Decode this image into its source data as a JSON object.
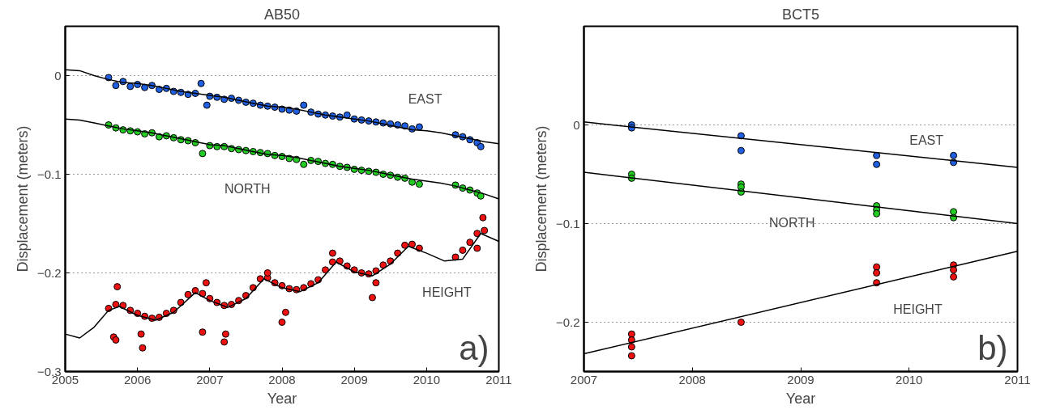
{
  "chart_data": [
    {
      "type": "scatter",
      "title": "AB50",
      "xlabel": "Year",
      "ylabel": "Displacement (meters)",
      "xlim": [
        2005,
        2011
      ],
      "ylim": [
        -0.3,
        0.05
      ],
      "xticks": [
        2005,
        2006,
        2007,
        2008,
        2009,
        2010,
        2011
      ],
      "yticks": [
        {
          "value": -0.3,
          "label": "−0.3"
        },
        {
          "value": -0.2,
          "label": "−0.2"
        },
        {
          "value": -0.1,
          "label": "−0.1"
        },
        0
      ],
      "grid": "y",
      "series": [
        {
          "marker": "circle",
          "color": "#1f5fe0",
          "x": [
            2005.6,
            2005.7,
            2005.8,
            2005.9,
            2006.0,
            2006.1,
            2006.2,
            2006.3,
            2006.4,
            2006.5,
            2006.6,
            2006.7,
            2006.8,
            2006.88,
            2006.96,
            2007.0,
            2007.1,
            2007.2,
            2007.3,
            2007.4,
            2007.5,
            2007.6,
            2007.7,
            2007.8,
            2007.9,
            2008.0,
            2008.1,
            2008.2,
            2008.3,
            2008.4,
            2008.5,
            2008.6,
            2008.7,
            2008.8,
            2008.9,
            2009.0,
            2009.1,
            2009.2,
            2009.3,
            2009.4,
            2009.5,
            2009.6,
            2009.7,
            2009.8,
            2009.9,
            2010.4,
            2010.5,
            2010.6,
            2010.7,
            2010.75
          ],
          "values": [
            -0.002,
            -0.01,
            -0.006,
            -0.011,
            -0.009,
            -0.012,
            -0.01,
            -0.014,
            -0.013,
            -0.016,
            -0.017,
            -0.019,
            -0.018,
            -0.008,
            -0.03,
            -0.021,
            -0.022,
            -0.024,
            -0.023,
            -0.025,
            -0.027,
            -0.028,
            -0.03,
            -0.031,
            -0.032,
            -0.034,
            -0.035,
            -0.036,
            -0.03,
            -0.037,
            -0.039,
            -0.04,
            -0.041,
            -0.042,
            -0.04,
            -0.044,
            -0.045,
            -0.046,
            -0.047,
            -0.048,
            -0.049,
            -0.05,
            -0.051,
            -0.054,
            -0.052,
            -0.06,
            -0.062,
            -0.065,
            -0.068,
            -0.072
          ]
        },
        {
          "marker": "circle",
          "color": "#22cc22",
          "x": [
            2005.6,
            2005.7,
            2005.8,
            2005.9,
            2006.0,
            2006.1,
            2006.2,
            2006.3,
            2006.4,
            2006.5,
            2006.6,
            2006.7,
            2006.8,
            2006.9,
            2007.0,
            2007.1,
            2007.2,
            2007.3,
            2007.4,
            2007.5,
            2007.6,
            2007.7,
            2007.8,
            2007.9,
            2008.0,
            2008.1,
            2008.2,
            2008.3,
            2008.4,
            2008.5,
            2008.6,
            2008.7,
            2008.8,
            2008.9,
            2009.0,
            2009.1,
            2009.2,
            2009.3,
            2009.4,
            2009.5,
            2009.6,
            2009.7,
            2009.8,
            2009.9,
            2010.4,
            2010.5,
            2010.6,
            2010.7,
            2010.75
          ],
          "values": [
            -0.05,
            -0.053,
            -0.055,
            -0.056,
            -0.057,
            -0.059,
            -0.058,
            -0.062,
            -0.061,
            -0.063,
            -0.065,
            -0.066,
            -0.068,
            -0.079,
            -0.071,
            -0.072,
            -0.072,
            -0.074,
            -0.075,
            -0.076,
            -0.077,
            -0.078,
            -0.079,
            -0.081,
            -0.082,
            -0.084,
            -0.085,
            -0.09,
            -0.086,
            -0.087,
            -0.089,
            -0.09,
            -0.092,
            -0.093,
            -0.095,
            -0.096,
            -0.097,
            -0.098,
            -0.1,
            -0.101,
            -0.103,
            -0.104,
            -0.108,
            -0.11,
            -0.111,
            -0.114,
            -0.116,
            -0.119,
            -0.122
          ]
        },
        {
          "marker": "circle",
          "color": "#ee1111",
          "x": [
            2005.6,
            2005.7,
            2005.8,
            2005.9,
            2006.0,
            2006.1,
            2006.2,
            2006.3,
            2006.4,
            2006.5,
            2006.6,
            2006.7,
            2006.8,
            2006.9,
            2007.0,
            2007.1,
            2007.2,
            2007.3,
            2007.4,
            2007.5,
            2007.6,
            2007.7,
            2007.8,
            2007.9,
            2008.0,
            2008.1,
            2008.2,
            2008.3,
            2008.4,
            2008.5,
            2008.6,
            2008.7,
            2008.8,
            2008.9,
            2009.0,
            2009.1,
            2009.2,
            2009.3,
            2009.4,
            2009.5,
            2009.6,
            2009.7,
            2009.8,
            2009.9,
            2010.4,
            2010.5,
            2010.6,
            2010.7,
            2010.8,
            2005.67,
            2005.7,
            2006.05,
            2006.07,
            2006.9,
            2007.2,
            2007.22,
            2008.0,
            2008.05,
            2007.8,
            2008.7,
            2009.3,
            2009.25,
            2005.72,
            2006.95,
            2010.7,
            2010.78
          ],
          "values": [
            -0.236,
            -0.232,
            -0.233,
            -0.238,
            -0.241,
            -0.244,
            -0.246,
            -0.245,
            -0.241,
            -0.238,
            -0.23,
            -0.222,
            -0.218,
            -0.221,
            -0.226,
            -0.23,
            -0.233,
            -0.232,
            -0.228,
            -0.223,
            -0.215,
            -0.206,
            -0.205,
            -0.21,
            -0.213,
            -0.216,
            -0.217,
            -0.215,
            -0.211,
            -0.207,
            -0.197,
            -0.189,
            -0.188,
            -0.193,
            -0.197,
            -0.2,
            -0.201,
            -0.198,
            -0.192,
            -0.188,
            -0.18,
            -0.172,
            -0.171,
            -0.175,
            -0.184,
            -0.177,
            -0.169,
            -0.16,
            -0.157,
            -0.265,
            -0.268,
            -0.262,
            -0.276,
            -0.26,
            -0.27,
            -0.262,
            -0.25,
            -0.24,
            -0.2,
            -0.18,
            -0.21,
            -0.225,
            -0.214,
            -0.21,
            -0.175,
            -0.144
          ]
        },
        {
          "type": "line",
          "color": "#000000",
          "x": [
            2005.0,
            2005.2,
            2005.4,
            2005.6,
            2005.8,
            2006.0,
            2006.2,
            2006.4,
            2006.6,
            2006.8,
            2007.0,
            2007.2,
            2007.4,
            2007.6,
            2007.8,
            2008.0,
            2008.2,
            2008.4,
            2008.6,
            2008.8,
            2009.0,
            2009.2,
            2009.4,
            2009.6,
            2009.8,
            2010.0,
            2010.2,
            2010.4,
            2010.6,
            2010.8,
            2011.0
          ],
          "values": [
            0.006,
            0.005,
            0.0,
            -0.004,
            -0.007,
            -0.008,
            -0.01,
            -0.013,
            -0.016,
            -0.018,
            -0.02,
            -0.022,
            -0.025,
            -0.028,
            -0.031,
            -0.032,
            -0.034,
            -0.037,
            -0.04,
            -0.042,
            -0.044,
            -0.046,
            -0.049,
            -0.052,
            -0.055,
            -0.056,
            -0.058,
            -0.061,
            -0.064,
            -0.067,
            -0.069
          ]
        },
        {
          "type": "line",
          "color": "#000000",
          "x": [
            2005.0,
            2005.2,
            2005.4,
            2005.6,
            2005.8,
            2006.0,
            2006.2,
            2006.4,
            2006.6,
            2006.8,
            2007.0,
            2007.2,
            2007.4,
            2007.6,
            2007.8,
            2008.0,
            2008.2,
            2008.4,
            2008.6,
            2008.8,
            2009.0,
            2009.2,
            2009.4,
            2009.6,
            2009.8,
            2010.0,
            2010.2,
            2010.4,
            2010.6,
            2010.8,
            2011.0
          ],
          "values": [
            -0.044,
            -0.045,
            -0.048,
            -0.051,
            -0.054,
            -0.056,
            -0.058,
            -0.061,
            -0.064,
            -0.067,
            -0.07,
            -0.071,
            -0.074,
            -0.077,
            -0.08,
            -0.081,
            -0.083,
            -0.086,
            -0.089,
            -0.092,
            -0.094,
            -0.096,
            -0.099,
            -0.102,
            -0.105,
            -0.107,
            -0.109,
            -0.112,
            -0.116,
            -0.12,
            -0.125
          ]
        },
        {
          "type": "line",
          "color": "#000000",
          "x": [
            2005.0,
            2005.2,
            2005.4,
            2005.6,
            2005.75,
            2006.0,
            2006.25,
            2006.5,
            2006.8,
            2007.0,
            2007.25,
            2007.5,
            2007.75,
            2008.0,
            2008.25,
            2008.5,
            2008.75,
            2009.0,
            2009.25,
            2009.5,
            2009.75,
            2010.0,
            2010.25,
            2010.5,
            2010.75,
            2011.0
          ],
          "values": [
            -0.262,
            -0.266,
            -0.255,
            -0.238,
            -0.234,
            -0.243,
            -0.248,
            -0.24,
            -0.22,
            -0.228,
            -0.235,
            -0.226,
            -0.206,
            -0.215,
            -0.219,
            -0.21,
            -0.189,
            -0.199,
            -0.203,
            -0.191,
            -0.173,
            -0.18,
            -0.188,
            -0.186,
            -0.16,
            -0.168
          ]
        }
      ],
      "annotations": [
        "EAST",
        "NORTH",
        "HEIGHT",
        "a)"
      ]
    },
    {
      "type": "scatter",
      "title": "BCT5",
      "xlabel": "Year",
      "ylabel": "Displacement (meters)",
      "xlim": [
        2007,
        2011
      ],
      "ylim": [
        -0.25,
        0.1
      ],
      "xticks": [
        2007,
        2008,
        2009,
        2010,
        2011
      ],
      "yticks": [
        {
          "value": -0.2,
          "label": "−0.2"
        },
        {
          "value": -0.1,
          "label": "−0.1"
        },
        0
      ],
      "grid": "y",
      "series": [
        {
          "marker": "circle",
          "color": "#1f5fe0",
          "x": [
            2007.44,
            2007.44,
            2008.45,
            2008.45,
            2009.7,
            2009.7,
            2010.41,
            2010.41
          ],
          "values": [
            0.0,
            -0.003,
            -0.011,
            -0.026,
            -0.031,
            -0.04,
            -0.031,
            -0.038
          ]
        },
        {
          "marker": "circle",
          "color": "#22cc22",
          "x": [
            2007.44,
            2007.44,
            2008.45,
            2008.45,
            2008.45,
            2009.7,
            2009.7,
            2009.7,
            2010.41,
            2010.41
          ],
          "values": [
            -0.05,
            -0.054,
            -0.06,
            -0.063,
            -0.068,
            -0.082,
            -0.086,
            -0.09,
            -0.088,
            -0.094
          ]
        },
        {
          "marker": "circle",
          "color": "#ee1111",
          "x": [
            2007.44,
            2007.44,
            2007.44,
            2007.44,
            2008.45,
            2009.7,
            2009.7,
            2009.7,
            2010.41,
            2010.41,
            2010.41
          ],
          "values": [
            -0.212,
            -0.218,
            -0.225,
            -0.234,
            -0.2,
            -0.144,
            -0.15,
            -0.16,
            -0.142,
            -0.147,
            -0.154
          ]
        },
        {
          "type": "line",
          "color": "#000000",
          "x": [
            2007,
            2011
          ],
          "values": [
            0.003,
            -0.043
          ]
        },
        {
          "type": "line",
          "color": "#000000",
          "x": [
            2007,
            2011
          ],
          "values": [
            -0.048,
            -0.1
          ]
        },
        {
          "type": "line",
          "color": "#000000",
          "x": [
            2007,
            2011
          ],
          "values": [
            -0.232,
            -0.128
          ]
        }
      ],
      "annotations": [
        "EAST",
        "NORTH",
        "HEIGHT",
        "b)"
      ]
    }
  ]
}
